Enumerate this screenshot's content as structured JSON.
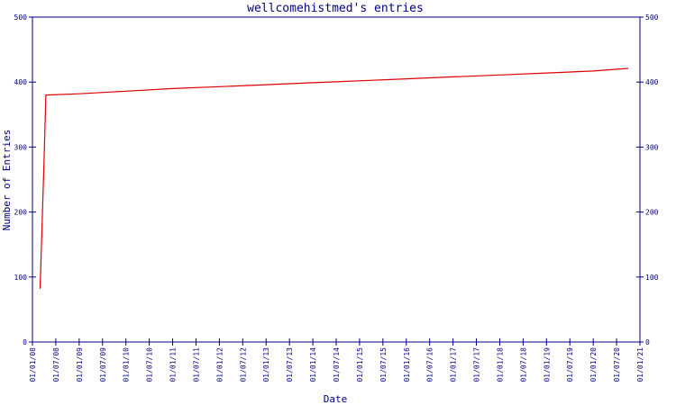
{
  "chart_data": {
    "type": "line",
    "title": "wellcomehistmed's entries",
    "xlabel": "Date",
    "ylabel": "Number of Entries",
    "x_tick_labels": [
      "01/01/08",
      "01/07/08",
      "01/01/09",
      "01/07/09",
      "01/01/10",
      "01/07/10",
      "01/01/11",
      "01/07/11",
      "01/01/12",
      "01/07/12",
      "01/01/13",
      "01/07/13",
      "01/01/14",
      "01/07/14",
      "01/01/15",
      "01/07/15",
      "01/01/16",
      "01/07/16",
      "01/01/17",
      "01/07/17",
      "01/01/18",
      "01/07/18",
      "01/01/19",
      "01/07/19",
      "01/01/20",
      "01/07/20",
      "01/01/21"
    ],
    "y_ticks": [
      0,
      100,
      200,
      300,
      400,
      500
    ],
    "ylim": [
      0,
      500
    ],
    "xlim": [
      "2008-01-01",
      "2021-01-01"
    ],
    "grid": false,
    "secondary_y_axis": true,
    "colors": {
      "axis": "#000080",
      "line": "#dd0000"
    },
    "series": [
      {
        "points": [
          {
            "x": "2008-03-01",
            "y": 82
          },
          {
            "x": "2008-04-01",
            "y": 280
          },
          {
            "x": "2008-04-15",
            "y": 380
          },
          {
            "x": "2009-01-01",
            "y": 382
          },
          {
            "x": "2010-01-01",
            "y": 386
          },
          {
            "x": "2011-01-01",
            "y": 390
          },
          {
            "x": "2012-01-01",
            "y": 393
          },
          {
            "x": "2013-01-01",
            "y": 396
          },
          {
            "x": "2014-01-01",
            "y": 399
          },
          {
            "x": "2015-01-01",
            "y": 402
          },
          {
            "x": "2016-01-01",
            "y": 405
          },
          {
            "x": "2017-01-01",
            "y": 408
          },
          {
            "x": "2018-01-01",
            "y": 411
          },
          {
            "x": "2019-01-01",
            "y": 414
          },
          {
            "x": "2020-01-01",
            "y": 417
          },
          {
            "x": "2020-10-01",
            "y": 421
          }
        ]
      }
    ]
  }
}
